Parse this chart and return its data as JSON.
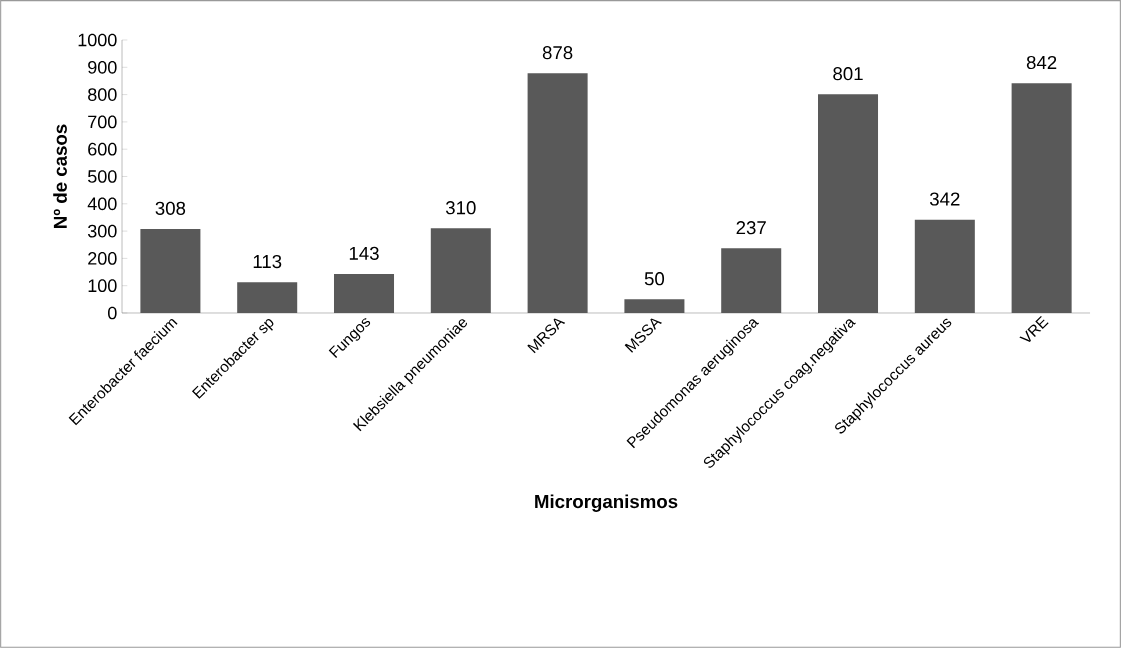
{
  "chart_data": {
    "type": "bar",
    "xlabel": "Microrganismos",
    "ylabel": "Nº de casos",
    "categories": [
      "Enterobacter faecium",
      "Enterobacter sp",
      "Fungos",
      "Klebsiella pneumoniae",
      "MRSA",
      "MSSA",
      "Pseudomonas aeruginosa",
      "Staphylococcus coag.negativa",
      "Staphylococcus aureus",
      "VRE"
    ],
    "values": [
      308,
      113,
      143,
      310,
      878,
      50,
      237,
      801,
      342,
      842
    ],
    "color": "#595959",
    "ylim": [
      0,
      1000
    ],
    "yticks": [
      0,
      100,
      200,
      300,
      400,
      500,
      600,
      700,
      800,
      900,
      1000
    ],
    "data_labels": true
  }
}
